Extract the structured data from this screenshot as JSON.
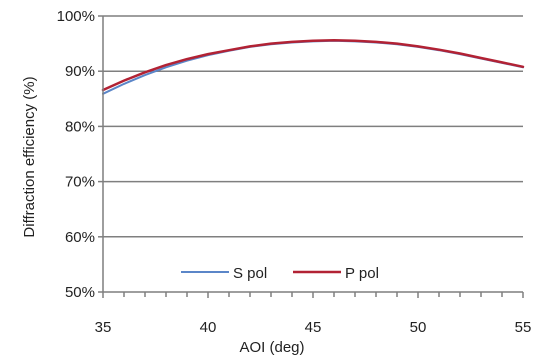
{
  "chart_data": {
    "type": "line",
    "title": "",
    "xlabel": "AOI (deg)",
    "ylabel": "Diffraction efficiency (%)",
    "xlim": [
      35,
      55
    ],
    "ylim": [
      50,
      100
    ],
    "x_ticks": [
      35,
      40,
      45,
      50,
      55
    ],
    "x_tick_labels": [
      "35",
      "40",
      "45",
      "50",
      "55"
    ],
    "y_ticks": [
      50,
      60,
      70,
      80,
      90,
      100
    ],
    "y_tick_labels": [
      "50%",
      "60%",
      "70%",
      "80%",
      "90%",
      "100%"
    ],
    "grid": "horizontal",
    "legend_position": "bottom-center",
    "series": [
      {
        "name": "S pol",
        "color": "#5b86c8",
        "x": [
          35,
          36,
          37,
          38,
          39,
          40,
          41,
          42,
          43,
          44,
          45,
          46,
          47,
          48,
          49,
          50,
          51,
          52,
          53,
          54,
          55
        ],
        "values": [
          85.9,
          87.7,
          89.3,
          90.7,
          91.9,
          92.9,
          93.7,
          94.4,
          94.9,
          95.2,
          95.4,
          95.5,
          95.4,
          95.2,
          94.9,
          94.4,
          93.8,
          93.1,
          92.3,
          91.5,
          90.7
        ]
      },
      {
        "name": "P pol",
        "color": "#b22234",
        "x": [
          35,
          36,
          37,
          38,
          39,
          40,
          41,
          42,
          43,
          44,
          45,
          46,
          47,
          48,
          49,
          50,
          51,
          52,
          53,
          54,
          55
        ],
        "values": [
          86.6,
          88.3,
          89.8,
          91.1,
          92.2,
          93.1,
          93.8,
          94.5,
          95.0,
          95.3,
          95.5,
          95.6,
          95.5,
          95.3,
          95.0,
          94.5,
          93.9,
          93.2,
          92.4,
          91.6,
          90.8
        ]
      }
    ]
  }
}
